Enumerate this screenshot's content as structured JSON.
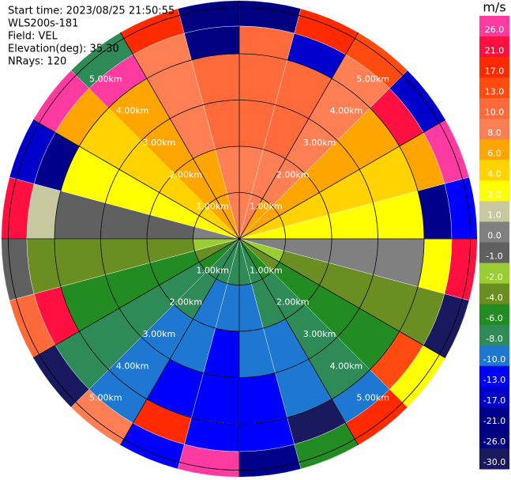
{
  "chart_data": {
    "type": "ppi",
    "header": [
      "Start time: 2023/08/25 21:50:55",
      "WLS200s-181",
      "Field: VEL",
      "Elevation(deg): 35.30",
      "NRays: 120"
    ],
    "colorbar_title": "m/s",
    "azimuths": [
      0,
      15,
      30,
      45,
      60,
      75,
      90,
      105,
      120,
      135,
      150,
      165,
      180,
      195,
      210,
      225,
      240,
      255,
      270,
      285,
      300,
      315,
      330,
      345
    ],
    "range_edges": [
      0,
      1,
      2,
      3,
      4,
      4.6,
      5.15
    ],
    "values": [
      [
        8,
        8,
        7,
        6,
        4,
        2,
        0,
        -2,
        -4,
        -6,
        -7,
        -8,
        -8,
        -8,
        -7,
        -6,
        -4,
        -2,
        0,
        2,
        4,
        6,
        7,
        8
      ],
      [
        9,
        9,
        8,
        6,
        4.5,
        2.3,
        0.5,
        -2.3,
        -4.5,
        -6.4,
        -7.8,
        -8.7,
        -9,
        -8.7,
        -7.8,
        -6.4,
        -4.5,
        -2.3,
        -0.5,
        2.3,
        4.5,
        6.4,
        7.8,
        8.7
      ],
      [
        10.5,
        10,
        9,
        7,
        5,
        2.6,
        0.3,
        -2.6,
        -5,
        -7,
        -8.7,
        -9.7,
        -10.5,
        -9.7,
        -8.7,
        -7,
        -5,
        -2.6,
        -0.3,
        2.6,
        5,
        7,
        9,
        10
      ],
      [
        12,
        11,
        9.5,
        7.8,
        5.5,
        2.8,
        0.2,
        -3,
        -5.5,
        -8,
        -9.6,
        -11,
        -11.5,
        -11,
        -9.6,
        -8,
        -5.5,
        -3,
        -0.2,
        3,
        5.5,
        7.8,
        9.5,
        11
      ],
      [
        11,
        -14,
        9,
        22,
        6,
        -20,
        3,
        -3,
        15,
        -9,
        -27,
        -11,
        -12,
        18,
        -10,
        -8,
        25,
        -4,
        1,
        -18,
        6,
        27,
        9,
        -22
      ],
      [
        -26,
        20,
        14,
        -17,
        28,
        -11,
        24,
        -29,
        3,
        19,
        -5,
        -21,
        27,
        -13,
        9,
        -28,
        12,
        -1,
        22,
        -15,
        29,
        -7,
        17,
        -24
      ]
    ],
    "rticks": [
      {
        "value": 1,
        "label": "1.00km"
      },
      {
        "value": 2,
        "label": "2.00km"
      },
      {
        "value": 3,
        "label": "3.00km"
      },
      {
        "value": 4,
        "label": "4.00km"
      },
      {
        "value": 5,
        "label": "5.00km"
      }
    ],
    "levels": [
      {
        "value": 26,
        "label": "26.0"
      },
      {
        "value": 21,
        "label": "21.0"
      },
      {
        "value": 17,
        "label": "17.0"
      },
      {
        "value": 13,
        "label": "13.0"
      },
      {
        "value": 10,
        "label": "10.0"
      },
      {
        "value": 8,
        "label": "8.0"
      },
      {
        "value": 6,
        "label": "6.0"
      },
      {
        "value": 4,
        "label": "4.0"
      },
      {
        "value": 2,
        "label": "2.0"
      },
      {
        "value": 1,
        "label": "1.0"
      },
      {
        "value": 0,
        "label": "0.0"
      },
      {
        "value": -1,
        "label": "-1.0"
      },
      {
        "value": -2,
        "label": "-2.0"
      },
      {
        "value": -4,
        "label": "-4.0"
      },
      {
        "value": -6,
        "label": "-6.0"
      },
      {
        "value": -8,
        "label": "-8.0"
      },
      {
        "value": -10,
        "label": "-10.0"
      },
      {
        "value": -13,
        "label": "-13.0"
      },
      {
        "value": -17,
        "label": "-17.0"
      },
      {
        "value": -21,
        "label": "-21.0"
      },
      {
        "value": -26,
        "label": "-26.0"
      },
      {
        "value": -30,
        "label": "-30.0"
      }
    ],
    "level_colors": [
      "#ff3aa0",
      "#ff1040",
      "#ff2a00",
      "#ff4a10",
      "#ff6a3a",
      "#ff7f55",
      "#ffa500",
      "#ffd200",
      "#ffff00",
      "#c8c8a0",
      "#808080",
      "#606060",
      "#9acd32",
      "#6b8e23",
      "#228b22",
      "#2e8b57",
      "#1e78d2",
      "#0000ff",
      "#0000cd",
      "#00008b",
      "#000080",
      "#191960"
    ]
  }
}
